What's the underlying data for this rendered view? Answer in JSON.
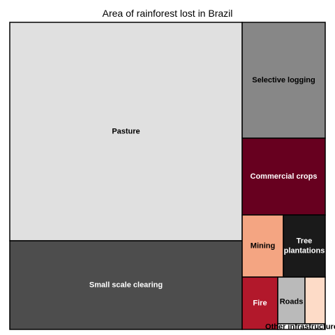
{
  "chart_data": {
    "type": "treemap",
    "title": "Area of rainforest lost in Brazil",
    "items": [
      {
        "label": "Pasture",
        "value": 60.0,
        "color": "#e0e0e0",
        "text_color": "#000000"
      },
      {
        "label": "Small scale clearing",
        "value": 20.0,
        "color": "#4d4d4d",
        "text_color": "#ffffff"
      },
      {
        "label": "Selective logging",
        "value": 7.5,
        "color": "#878787",
        "text_color": "#000000"
      },
      {
        "label": "Commercial crops",
        "value": 5.0,
        "color": "#67001f",
        "text_color": "#ffffff"
      },
      {
        "label": "Mining",
        "value": 1.6,
        "color": "#f4a582",
        "text_color": "#000000"
      },
      {
        "label": "Tree plantations",
        "value": 1.6,
        "color": "#1a1a1a",
        "text_color": "#ffffff"
      },
      {
        "label": "Fire",
        "value": 1.0,
        "color": "#b2182b",
        "text_color": "#ffffff"
      },
      {
        "label": "Roads",
        "value": 0.8,
        "color": "#bababa",
        "text_color": "#000000"
      },
      {
        "label": "Other infrastructure",
        "value": 0.6,
        "color": "#fddbc7",
        "text_color": "#000000"
      }
    ]
  }
}
